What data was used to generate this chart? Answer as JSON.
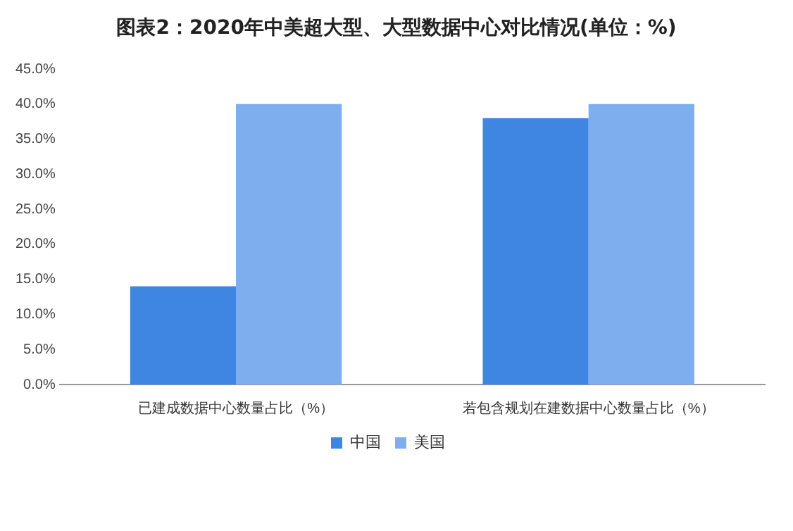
{
  "chart_data": {
    "type": "bar",
    "title": "图表2：2020年中美超大型、大型数据中心对比情况(单位：%)",
    "categories": [
      "已建成数据中心数量占比（%）",
      "若包含规划在建数据中心数量占比（%）"
    ],
    "series": [
      {
        "name": "中国",
        "color": "#3f86e3",
        "values": [
          14,
          38
        ]
      },
      {
        "name": "美国",
        "color": "#7eaeee",
        "values": [
          40,
          40
        ]
      }
    ],
    "ylim": [
      0,
      45
    ],
    "yticks": [
      {
        "value": 0,
        "label": "0.0%"
      },
      {
        "value": 5,
        "label": "5.0%"
      },
      {
        "value": 10,
        "label": "10.0%"
      },
      {
        "value": 15,
        "label": "15.0%"
      },
      {
        "value": 20,
        "label": "20.0%"
      },
      {
        "value": 25,
        "label": "25.0%"
      },
      {
        "value": 30,
        "label": "30.0%"
      },
      {
        "value": 35,
        "label": "35.0%"
      },
      {
        "value": 40,
        "label": "40.0%"
      },
      {
        "value": 45,
        "label": "45.0%"
      }
    ],
    "grid": false,
    "legend": "bottom"
  }
}
